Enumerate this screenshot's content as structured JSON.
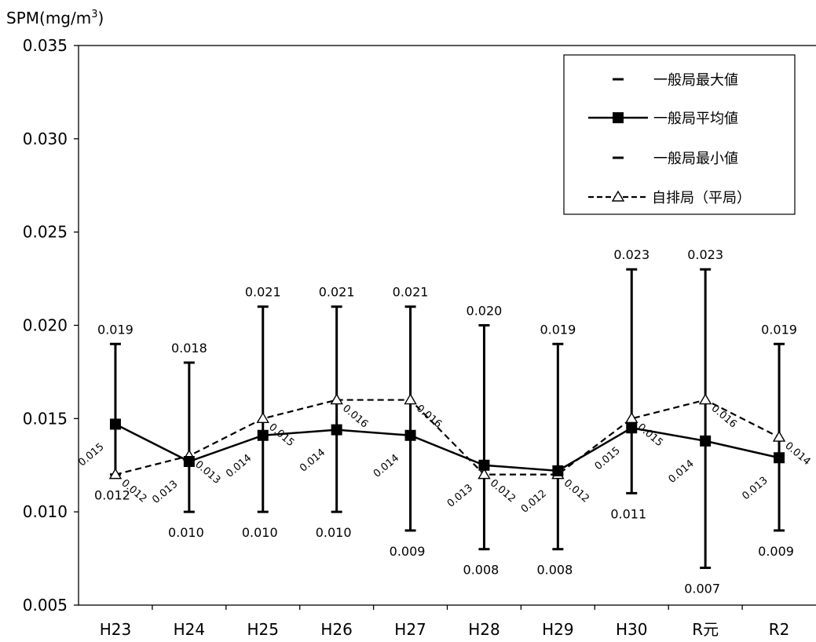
{
  "chart_data": {
    "type": "line",
    "ylabel": "SPM(mg/m",
    "ylabel_sup": "3",
    "ylabel_close": ")",
    "ylim": [
      0.005,
      0.035
    ],
    "yticks": [
      "0.005",
      "0.010",
      "0.015",
      "0.020",
      "0.025",
      "0.030",
      "0.035"
    ],
    "categories": [
      "H23",
      "H24",
      "H25",
      "H26",
      "H27",
      "H28",
      "H29",
      "H30",
      "R元",
      "R2"
    ],
    "legend_position": "top-right",
    "series": [
      {
        "name": "一般局最大値",
        "values": [
          0.019,
          0.018,
          0.021,
          0.021,
          0.021,
          0.02,
          0.019,
          0.023,
          0.023,
          0.019
        ],
        "labels": [
          "0.019",
          "0.018",
          "0.021",
          "0.021",
          "0.021",
          "0.020",
          "0.019",
          "0.023",
          "0.023",
          "0.019"
        ]
      },
      {
        "name": "一般局平均値",
        "values": [
          0.0147,
          0.0127,
          0.0141,
          0.0144,
          0.0141,
          0.0125,
          0.0122,
          0.0145,
          0.0138,
          0.0129
        ],
        "labels": [
          "0.015",
          "0.013",
          "0.014",
          "0.014",
          "0.014",
          "0.013",
          "0.012",
          "0.015",
          "0.014",
          "0.013"
        ]
      },
      {
        "name": "一般局最小値",
        "values": [
          0.012,
          0.01,
          0.01,
          0.01,
          0.009,
          0.008,
          0.008,
          0.011,
          0.007,
          0.009
        ],
        "labels": [
          "0.012",
          "0.010",
          "0.010",
          "0.010",
          "0.009",
          "0.008",
          "0.008",
          "0.011",
          "0.007",
          "0.009"
        ]
      },
      {
        "name": "自排局（平局）",
        "values": [
          0.012,
          0.013,
          0.015,
          0.016,
          0.016,
          0.012,
          0.012,
          0.015,
          0.016,
          0.014
        ],
        "labels": [
          "0.012",
          "0.013",
          "0.015",
          "0.016",
          "0.016",
          "0.012",
          "0.012",
          "0.015",
          "0.016",
          "0.014"
        ]
      }
    ]
  }
}
